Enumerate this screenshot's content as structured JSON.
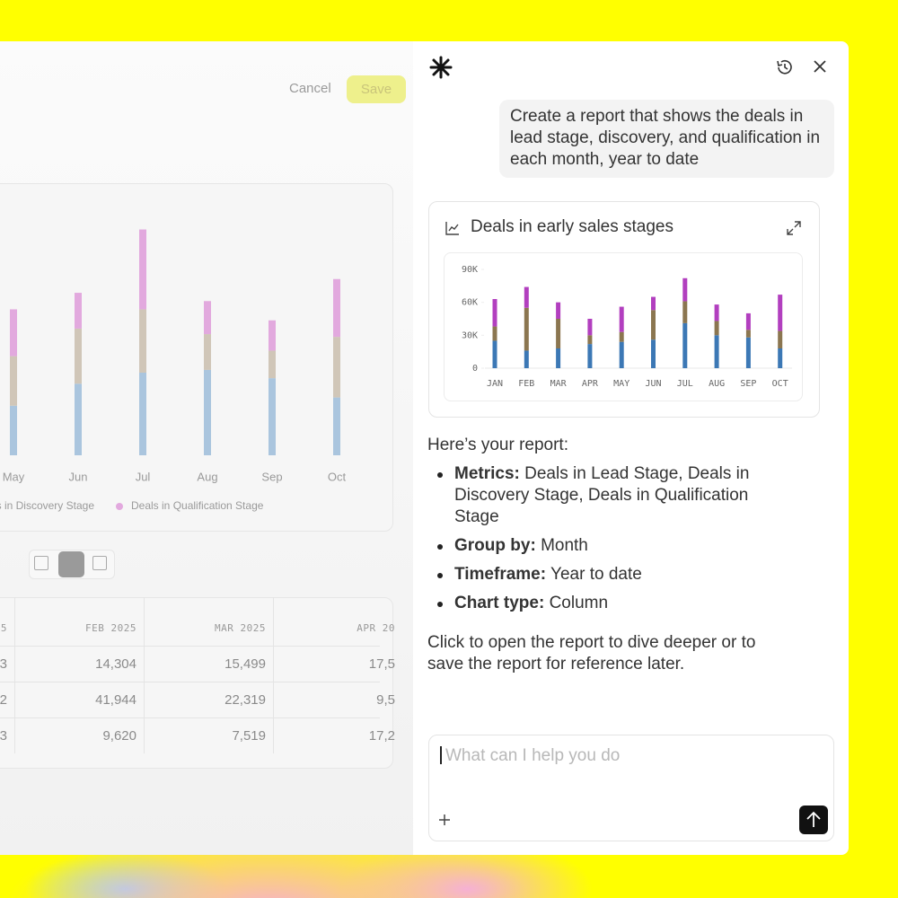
{
  "header": {
    "cancel": "Cancel",
    "save": "Save"
  },
  "chart_data": [
    {
      "type": "bar",
      "stacked": true,
      "categories": [
        "May",
        "Jun",
        "Jul",
        "Aug",
        "Sep",
        "Oct"
      ],
      "series": [
        {
          "color": "#aac5de",
          "values": [
            18000,
            26000,
            30000,
            31000,
            28000,
            21000
          ]
        },
        {
          "name": "s in Discovery Stage",
          "color": "#d0c6b8",
          "values": [
            18000,
            20000,
            23000,
            13000,
            10000,
            22000
          ]
        },
        {
          "name": "Deals in Qualification Stage",
          "color": "#e2a9de",
          "values": [
            17000,
            13000,
            29000,
            12000,
            11000,
            21000
          ]
        }
      ],
      "ylim": [
        0,
        90000
      ]
    },
    {
      "type": "bar",
      "stacked": true,
      "title": "Deals in early sales stages",
      "categories": [
        "JAN",
        "FEB",
        "MAR",
        "APR",
        "MAY",
        "JUN",
        "JUL",
        "AUG",
        "SEP",
        "OCT"
      ],
      "series": [
        {
          "color": "#3c78b5",
          "values": [
            25000,
            16000,
            18000,
            22000,
            24000,
            26000,
            41000,
            30000,
            28000,
            18000
          ]
        },
        {
          "color": "#8b7650",
          "values": [
            13000,
            39000,
            27000,
            8000,
            9000,
            27000,
            20000,
            13000,
            7000,
            16000
          ]
        },
        {
          "color": "#b23fbf",
          "values": [
            25000,
            19000,
            15000,
            15000,
            23000,
            12000,
            21000,
            15000,
            15000,
            33000
          ]
        }
      ],
      "ylim": [
        0,
        90000
      ],
      "yticks": [
        0,
        {
          "value": 30000,
          "label": "30K"
        },
        {
          "value": 60000,
          "label": "60K"
        },
        {
          "value": 90000,
          "label": "90K"
        }
      ]
    }
  ],
  "table": {
    "columns": [
      "5",
      "FEB 2025",
      "MAR 2025",
      "APR 20"
    ],
    "rows": [
      [
        "3",
        "14,304",
        "15,499",
        "17,5"
      ],
      [
        "2",
        "41,944",
        "22,319",
        "9,5"
      ],
      [
        "3",
        "9,620",
        "7,519",
        "17,2"
      ]
    ]
  },
  "chat": {
    "user_message": "Create a report that shows the deals in lead stage, discovery, and qualification in each month, year to date",
    "intro": "Here’s your report:",
    "items": [
      {
        "label": "Metrics:",
        "text": "Deals in Lead Stage, Deals in Discovery Stage, Deals in Qualification Stage"
      },
      {
        "label": "Group by:",
        "text": "Month"
      },
      {
        "label": "Timeframe:",
        "text": "Year to date"
      },
      {
        "label": "Chart type:",
        "text": "Column"
      }
    ],
    "outro": "Click to open the report to dive deeper or to save the report for reference later.",
    "input_placeholder": "What can I help you do"
  }
}
